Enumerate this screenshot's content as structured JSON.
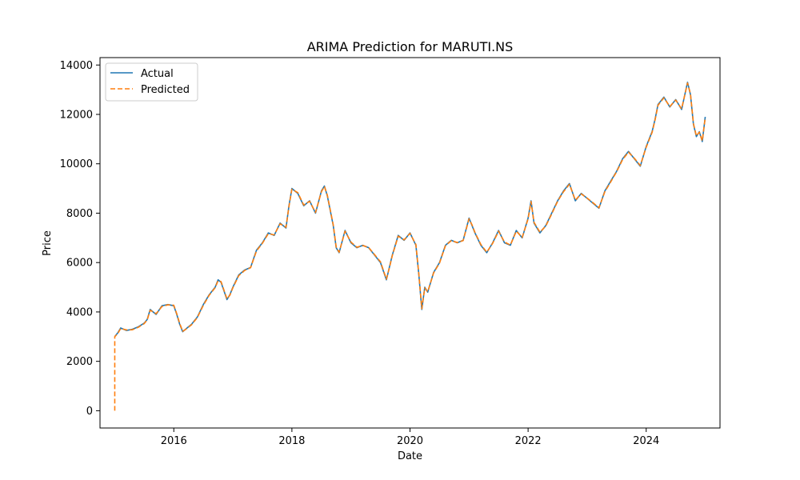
{
  "chart_data": {
    "type": "line",
    "title": "ARIMA Prediction for MARUTI.NS",
    "xlabel": "Date",
    "ylabel": "Price",
    "xlim": [
      2014.75,
      2025.25
    ],
    "ylim": [
      -700,
      14300
    ],
    "x_ticks": [
      2016,
      2018,
      2020,
      2022,
      2024
    ],
    "x_tick_labels": [
      "2016",
      "2018",
      "2020",
      "2022",
      "2024"
    ],
    "y_ticks": [
      0,
      2000,
      4000,
      6000,
      8000,
      10000,
      12000,
      14000
    ],
    "y_tick_labels": [
      "0",
      "2000",
      "4000",
      "6000",
      "8000",
      "10000",
      "12000",
      "14000"
    ],
    "grid": false,
    "legend_position": "upper-left",
    "series": [
      {
        "name": "Actual",
        "color": "#1f77b4",
        "style": "solid",
        "x": [
          2015.0,
          2015.05,
          2015.1,
          2015.2,
          2015.3,
          2015.4,
          2015.5,
          2015.55,
          2015.6,
          2015.7,
          2015.8,
          2015.9,
          2016.0,
          2016.05,
          2016.1,
          2016.15,
          2016.2,
          2016.3,
          2016.4,
          2016.5,
          2016.6,
          2016.7,
          2016.75,
          2016.8,
          2016.9,
          2016.95,
          2017.0,
          2017.1,
          2017.2,
          2017.3,
          2017.4,
          2017.5,
          2017.6,
          2017.7,
          2017.8,
          2017.9,
          2017.95,
          2018.0,
          2018.1,
          2018.2,
          2018.3,
          2018.4,
          2018.5,
          2018.55,
          2018.6,
          2018.7,
          2018.75,
          2018.8,
          2018.9,
          2019.0,
          2019.1,
          2019.2,
          2019.3,
          2019.4,
          2019.5,
          2019.6,
          2019.65,
          2019.7,
          2019.8,
          2019.9,
          2020.0,
          2020.1,
          2020.15,
          2020.2,
          2020.25,
          2020.3,
          2020.4,
          2020.5,
          2020.6,
          2020.7,
          2020.8,
          2020.9,
          2021.0,
          2021.05,
          2021.1,
          2021.2,
          2021.3,
          2021.4,
          2021.5,
          2021.6,
          2021.7,
          2021.8,
          2021.9,
          2022.0,
          2022.05,
          2022.1,
          2022.2,
          2022.3,
          2022.4,
          2022.5,
          2022.6,
          2022.7,
          2022.8,
          2022.9,
          2023.0,
          2023.1,
          2023.2,
          2023.3,
          2023.4,
          2023.5,
          2023.6,
          2023.7,
          2023.8,
          2023.9,
          2024.0,
          2024.1,
          2024.15,
          2024.2,
          2024.3,
          2024.4,
          2024.5,
          2024.6,
          2024.7,
          2024.75,
          2024.8,
          2024.85,
          2024.9,
          2024.95,
          2025.0
        ],
        "y": [
          3000,
          3150,
          3350,
          3250,
          3300,
          3400,
          3550,
          3700,
          4100,
          3900,
          4250,
          4300,
          4250,
          3900,
          3500,
          3200,
          3300,
          3500,
          3800,
          4300,
          4700,
          5000,
          5300,
          5200,
          4500,
          4700,
          5000,
          5500,
          5700,
          5800,
          6500,
          6800,
          7200,
          7100,
          7600,
          7400,
          8300,
          9000,
          8800,
          8300,
          8500,
          8000,
          8900,
          9100,
          8700,
          7500,
          6600,
          6400,
          7300,
          6800,
          6600,
          6700,
          6600,
          6300,
          6000,
          5300,
          5800,
          6300,
          7100,
          6900,
          7200,
          6700,
          5500,
          4100,
          5000,
          4800,
          5600,
          6000,
          6700,
          6900,
          6800,
          6900,
          7800,
          7500,
          7200,
          6700,
          6400,
          6800,
          7300,
          6800,
          6700,
          7300,
          7000,
          7800,
          8500,
          7600,
          7200,
          7500,
          8000,
          8500,
          8900,
          9200,
          8500,
          8800,
          8600,
          8400,
          8200,
          8900,
          9300,
          9700,
          10200,
          10500,
          10200,
          9900,
          10700,
          11300,
          11800,
          12400,
          12700,
          12300,
          12600,
          12200,
          13300,
          12800,
          11600,
          11100,
          11300,
          10900,
          11900
        ]
      },
      {
        "name": "Predicted",
        "color": "#ff7f0e",
        "style": "dashed",
        "x": [
          2015.0,
          2015.0,
          2015.05,
          2015.1,
          2015.2,
          2015.3,
          2015.4,
          2015.5,
          2015.55,
          2015.6,
          2015.7,
          2015.8,
          2015.9,
          2016.0,
          2016.05,
          2016.1,
          2016.15,
          2016.2,
          2016.3,
          2016.4,
          2016.5,
          2016.6,
          2016.7,
          2016.75,
          2016.8,
          2016.9,
          2016.95,
          2017.0,
          2017.1,
          2017.2,
          2017.3,
          2017.4,
          2017.5,
          2017.6,
          2017.7,
          2017.8,
          2017.9,
          2017.95,
          2018.0,
          2018.1,
          2018.2,
          2018.3,
          2018.4,
          2018.5,
          2018.55,
          2018.6,
          2018.7,
          2018.75,
          2018.8,
          2018.9,
          2019.0,
          2019.1,
          2019.2,
          2019.3,
          2019.4,
          2019.5,
          2019.6,
          2019.65,
          2019.7,
          2019.8,
          2019.9,
          2020.0,
          2020.1,
          2020.15,
          2020.2,
          2020.25,
          2020.3,
          2020.4,
          2020.5,
          2020.6,
          2020.7,
          2020.8,
          2020.9,
          2021.0,
          2021.05,
          2021.1,
          2021.2,
          2021.3,
          2021.4,
          2021.5,
          2021.6,
          2021.7,
          2021.8,
          2021.9,
          2022.0,
          2022.05,
          2022.1,
          2022.2,
          2022.3,
          2022.4,
          2022.5,
          2022.6,
          2022.7,
          2022.8,
          2022.9,
          2023.0,
          2023.1,
          2023.2,
          2023.3,
          2023.4,
          2023.5,
          2023.6,
          2023.7,
          2023.8,
          2023.9,
          2024.0,
          2024.1,
          2024.15,
          2024.2,
          2024.3,
          2024.4,
          2024.5,
          2024.6,
          2024.7,
          2024.75,
          2024.8,
          2024.85,
          2024.9,
          2024.95,
          2025.0
        ],
        "y": [
          0,
          3000,
          3120,
          3330,
          3270,
          3280,
          3380,
          3530,
          3680,
          4070,
          3930,
          4220,
          4290,
          4270,
          3930,
          3530,
          3220,
          3290,
          3480,
          3780,
          4270,
          4680,
          4980,
          5270,
          5230,
          4530,
          4680,
          4980,
          5470,
          5680,
          5790,
          6470,
          6780,
          7170,
          7120,
          7570,
          7430,
          8270,
          8970,
          8830,
          8330,
          8480,
          8030,
          8870,
          9080,
          8730,
          7530,
          6630,
          6420,
          7270,
          6830,
          6620,
          6690,
          6610,
          6320,
          6030,
          5330,
          5780,
          6280,
          7070,
          6920,
          7180,
          6730,
          5530,
          4130,
          4970,
          4820,
          5580,
          5980,
          6680,
          6890,
          6810,
          6890,
          7770,
          7530,
          7220,
          6730,
          6420,
          6780,
          7270,
          6830,
          6710,
          7270,
          7020,
          7770,
          8470,
          7630,
          7230,
          7480,
          7970,
          8480,
          8870,
          9170,
          8530,
          8780,
          8610,
          8420,
          8220,
          8870,
          9270,
          9680,
          10170,
          10470,
          10220,
          9930,
          10670,
          11270,
          11770,
          12370,
          12670,
          12320,
          12580,
          12230,
          13270,
          12830,
          11630,
          11130,
          11280,
          10930,
          11870
        ]
      }
    ]
  }
}
